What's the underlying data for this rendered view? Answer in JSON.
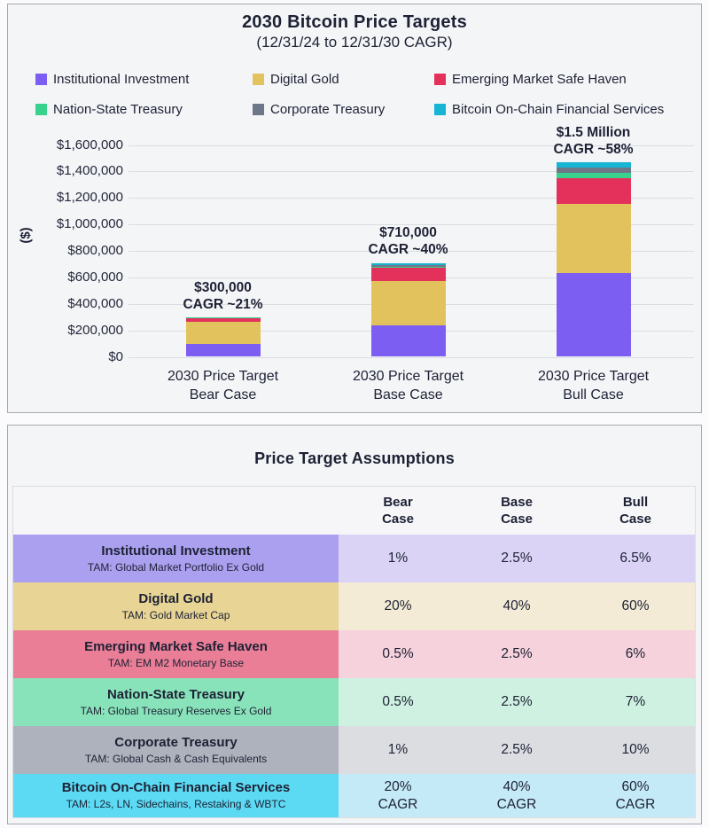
{
  "chart_data": {
    "type": "bar",
    "stacked": true,
    "title": "2030 Bitcoin Price Targets",
    "subtitle": "(12/31/24 to 12/31/30 CAGR)",
    "ylabel": "($)",
    "ylim": [
      0,
      1600000
    ],
    "ytick_step": 200000,
    "grid": true,
    "legend_position": "top",
    "categories": [
      "2030 Price Target\nBear Case",
      "2030 Price Target\nBase Case",
      "2030 Price Target\nBull Case"
    ],
    "annotations": [
      "$300,000\nCAGR ~21%",
      "$710,000\nCAGR ~40%",
      "$1.5 Million\nCAGR ~58%"
    ],
    "totals_label": [
      "$300,000",
      "$710,000",
      "$1.5 Million"
    ],
    "cagr": [
      "~21%",
      "~40%",
      "~58%"
    ],
    "series": [
      {
        "name": "Institutional Investment",
        "color": "#7c5ff2",
        "values": [
          98000,
          240000,
          630000
        ]
      },
      {
        "name": "Digital Gold",
        "color": "#e2c25c",
        "values": [
          168000,
          335000,
          523000
        ]
      },
      {
        "name": "Emerging Market Safe Haven",
        "color": "#e4315b",
        "values": [
          27000,
          95000,
          194000
        ]
      },
      {
        "name": "Nation-State Treasury",
        "color": "#38d28e",
        "values": [
          2000,
          13000,
          41000
        ]
      },
      {
        "name": "Corporate Treasury",
        "color": "#6e7787",
        "values": [
          1000,
          12000,
          42000
        ]
      },
      {
        "name": "Bitcoin On-Chain Financial Services",
        "color": "#17b4d4",
        "values": [
          4000,
          15000,
          40000
        ]
      }
    ]
  },
  "table": {
    "title": "Price Target Assumptions",
    "columns": [
      "Bear\nCase",
      "Base\nCase",
      "Bull\nCase"
    ],
    "rows": [
      {
        "name": "Institutional Investment",
        "tam": "TAM: Global Market Portfolio Ex Gold",
        "values": [
          "1%",
          "2.5%",
          "6.5%"
        ],
        "label_bg": "#aba0f0",
        "cell_bg": "#dad3f6"
      },
      {
        "name": "Digital Gold",
        "tam": "TAM: Gold Market Cap",
        "values": [
          "20%",
          "40%",
          "60%"
        ],
        "label_bg": "#e8d494",
        "cell_bg": "#f3ebd5"
      },
      {
        "name": "Emerging Market Safe Haven",
        "tam": "TAM: EM M2 Monetary Base",
        "values": [
          "0.5%",
          "2.5%",
          "6%"
        ],
        "label_bg": "#ea7e97",
        "cell_bg": "#f6d2dc"
      },
      {
        "name": "Nation-State Treasury",
        "tam": "TAM: Global Treasury Reserves Ex Gold",
        "values": [
          "0.5%",
          "2.5%",
          "7%"
        ],
        "label_bg": "#89e3ba",
        "cell_bg": "#cef1e1"
      },
      {
        "name": "Corporate Treasury",
        "tam": "TAM: Global Cash & Cash Equivalents",
        "values": [
          "1%",
          "2.5%",
          "10%"
        ],
        "label_bg": "#adb2bc",
        "cell_bg": "#dbdde1"
      },
      {
        "name": "Bitcoin On-Chain Financial Services",
        "tam": "TAM: L2s, LN, Sidechains, Restaking & WBTC",
        "values": [
          "20%\nCAGR",
          "40%\nCAGR",
          "60%\nCAGR"
        ],
        "label_bg": "#5cdaf3",
        "cell_bg": "#c4eaf7"
      }
    ]
  }
}
